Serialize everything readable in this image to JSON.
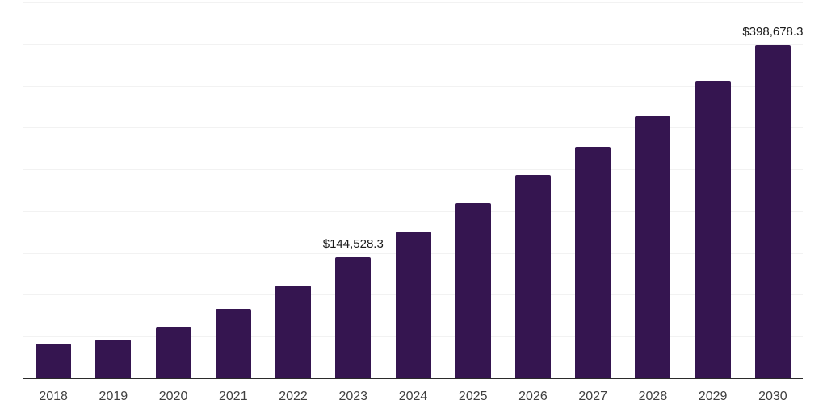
{
  "chart_data": {
    "type": "bar",
    "title": "",
    "xlabel": "",
    "ylabel": "",
    "categories": [
      "2018",
      "2019",
      "2020",
      "2021",
      "2022",
      "2023",
      "2024",
      "2025",
      "2026",
      "2027",
      "2028",
      "2029",
      "2030"
    ],
    "values": [
      42000,
      46800,
      60800,
      83500,
      110600,
      144528.3,
      175300,
      209100,
      242900,
      277600,
      314300,
      354900,
      398678.3
    ],
    "annotations": [
      {
        "index": 5,
        "text": "$144,528.3"
      },
      {
        "index": 12,
        "text": "$398,678.3"
      }
    ],
    "ylim": [
      0,
      450000
    ],
    "gridline_step": 50000,
    "grid": "horizontal",
    "legend_position": "none",
    "colors": {
      "bar": "#351550",
      "gridline": "#f2f2f2",
      "axis_line": "#2b2b2b",
      "tick_label": "#3f3f3f",
      "data_label": "#1a1a1a",
      "background": "#ffffff"
    }
  }
}
